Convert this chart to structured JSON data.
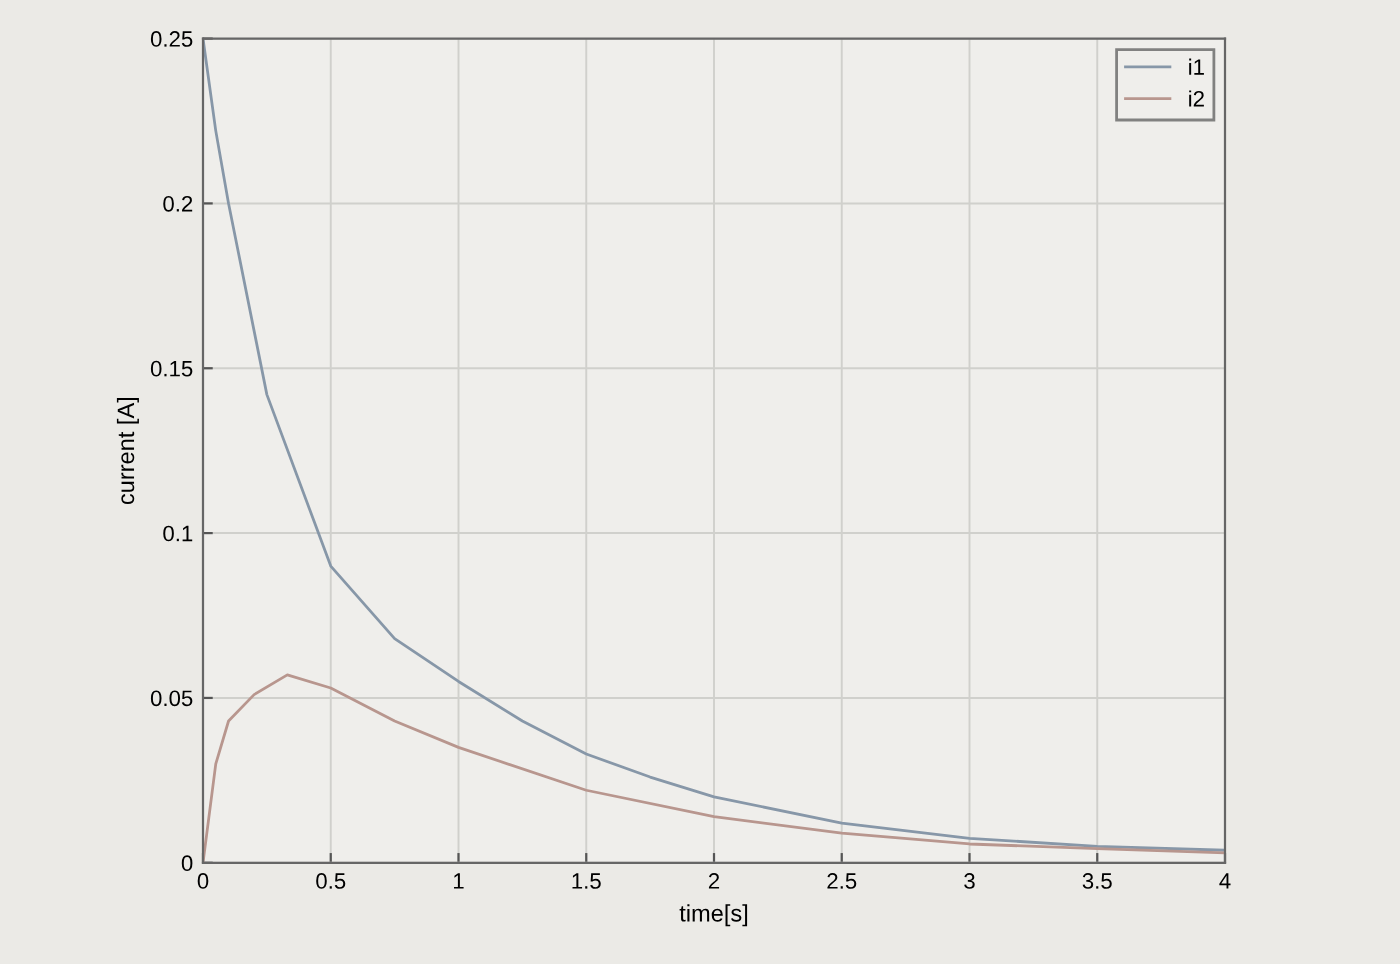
{
  "chart_data": {
    "type": "line",
    "xlabel": "time[s]",
    "ylabel": "current [A]",
    "xlim": [
      0,
      4
    ],
    "ylim": [
      0,
      0.25
    ],
    "xticks": [
      0,
      0.5,
      1,
      1.5,
      2,
      2.5,
      3,
      3.5,
      4
    ],
    "yticks": [
      0,
      0.05,
      0.1,
      0.15,
      0.2,
      0.25
    ],
    "grid": true,
    "legend": "top right",
    "marker": "none",
    "line_style": "solid",
    "series": [
      {
        "name": "i1",
        "color": "#8797a8",
        "x": [
          0,
          0.05,
          0.1,
          0.25,
          0.5,
          0.75,
          1,
          1.25,
          1.5,
          1.75,
          2,
          2.5,
          3,
          3.5,
          4
        ],
        "values": [
          0.25,
          0.222,
          0.2,
          0.142,
          0.09,
          0.068,
          0.055,
          0.043,
          0.033,
          0.026,
          0.02,
          0.012,
          0.0074,
          0.005,
          0.0038
        ]
      },
      {
        "name": "i2",
        "color": "#b8968e",
        "x": [
          0,
          0.05,
          0.1,
          0.2,
          0.33,
          0.5,
          0.75,
          1,
          1.5,
          2,
          2.5,
          3,
          3.5,
          4
        ],
        "values": [
          0,
          0.03,
          0.043,
          0.051,
          0.057,
          0.053,
          0.043,
          0.035,
          0.022,
          0.014,
          0.009,
          0.0057,
          0.0043,
          0.003
        ]
      }
    ]
  }
}
